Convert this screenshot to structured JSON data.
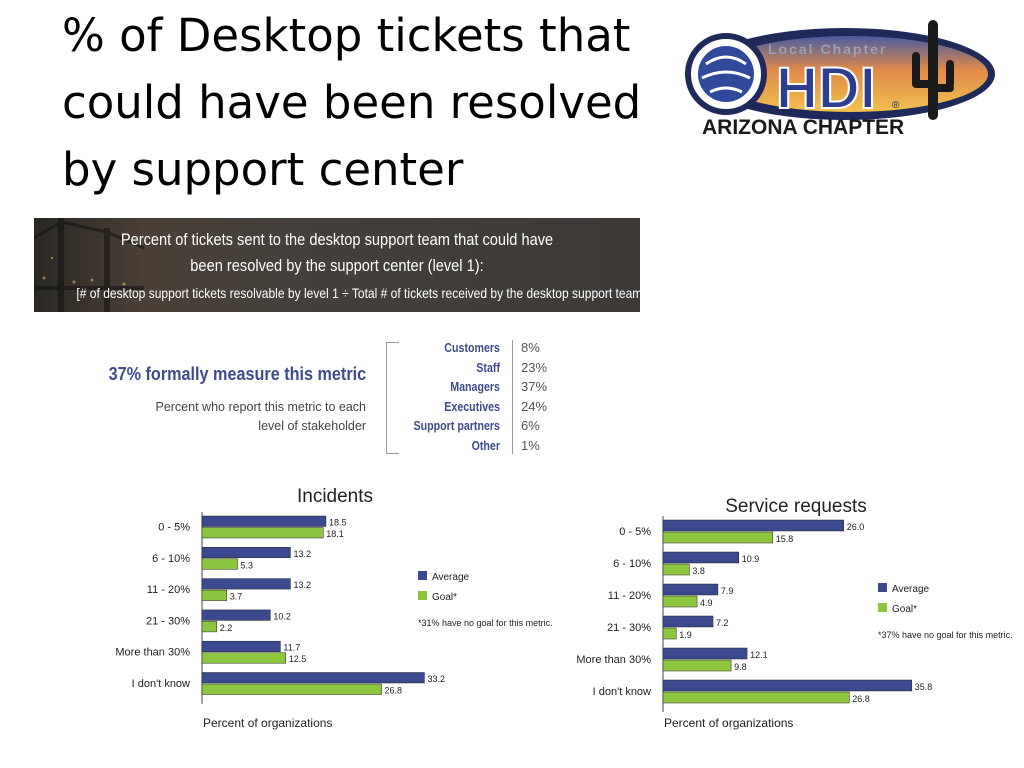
{
  "slide": {
    "title_lines": [
      "% of Desktop tickets that",
      "could have been resolved",
      "by support center"
    ]
  },
  "logo": {
    "top_text": "Local Chapter",
    "main_text": "HDI",
    "chapter_text": "ARIZONA CHAPTER",
    "registered_mark": "®"
  },
  "banner": {
    "line1": "Percent of tickets sent to the desktop support team that could have",
    "line2": "been resolved by the support center (level 1):",
    "line3": "[# of desktop support tickets resolvable by level 1 ÷ Total # of tickets received by the desktop support team]"
  },
  "metric": {
    "headline": "37% formally measure this metric",
    "subtitle_line1": "Percent who report this metric to each",
    "subtitle_line2": "level of stakeholder"
  },
  "stakeholders": [
    {
      "label": "Customers",
      "value": "8%"
    },
    {
      "label": "Staff",
      "value": "23%"
    },
    {
      "label": "Managers",
      "value": "37%"
    },
    {
      "label": "Executives",
      "value": "24%"
    },
    {
      "label": "Support partners",
      "value": "6%"
    },
    {
      "label": "Other",
      "value": "1%"
    }
  ],
  "colors": {
    "average": "#3b4a8e",
    "goal": "#8cc63f",
    "accent_text": "#3e4c8c"
  },
  "chart_data": [
    {
      "type": "bar",
      "orientation": "horizontal",
      "title": "Incidents",
      "xlabel": "Percent of organizations",
      "categories": [
        "0 - 5%",
        "6 - 10%",
        "11 - 20%",
        "21 - 30%",
        "More than 30%",
        "I don't know"
      ],
      "series": [
        {
          "name": "Average",
          "values": [
            18.5,
            13.2,
            13.2,
            10.2,
            11.7,
            33.2
          ]
        },
        {
          "name": "Goal*",
          "values": [
            18.1,
            5.3,
            3.7,
            2.2,
            12.5,
            26.8
          ]
        }
      ],
      "value_labels": {
        "Average": [
          "18.5",
          "13.2",
          "13.2",
          "10.2",
          "11.7",
          "33.2"
        ],
        "Goal*": [
          "18.1",
          "5.3",
          "3.7",
          "2.2",
          "12.5",
          "26.8"
        ]
      },
      "legend": [
        "Average",
        "Goal*"
      ],
      "legend_placement": "right",
      "footnote": "*31% have no goal for this metric.",
      "grid": false
    },
    {
      "type": "bar",
      "orientation": "horizontal",
      "title": "Service requests",
      "xlabel": "Percent of organizations",
      "categories": [
        "0 - 5%",
        "6 - 10%",
        "11 - 20%",
        "21 - 30%",
        "More than 30%",
        "I don't know"
      ],
      "series": [
        {
          "name": "Average",
          "values": [
            26.0,
            10.9,
            7.9,
            7.2,
            12.1,
            35.8
          ]
        },
        {
          "name": "Goal*",
          "values": [
            15.8,
            3.8,
            4.9,
            1.9,
            9.8,
            26.8
          ]
        }
      ],
      "value_labels": {
        "Average": [
          "26.0",
          "10.9",
          "7.9",
          "7.2",
          "12.1",
          "35.8"
        ],
        "Goal*": [
          "15.8",
          "3.8",
          "4.9",
          "1.9",
          "9.8",
          "26.8"
        ]
      },
      "legend": [
        "Average",
        "Goal*"
      ],
      "legend_placement": "right",
      "footnote": "*37% have no goal for this metric.",
      "grid": false
    }
  ]
}
